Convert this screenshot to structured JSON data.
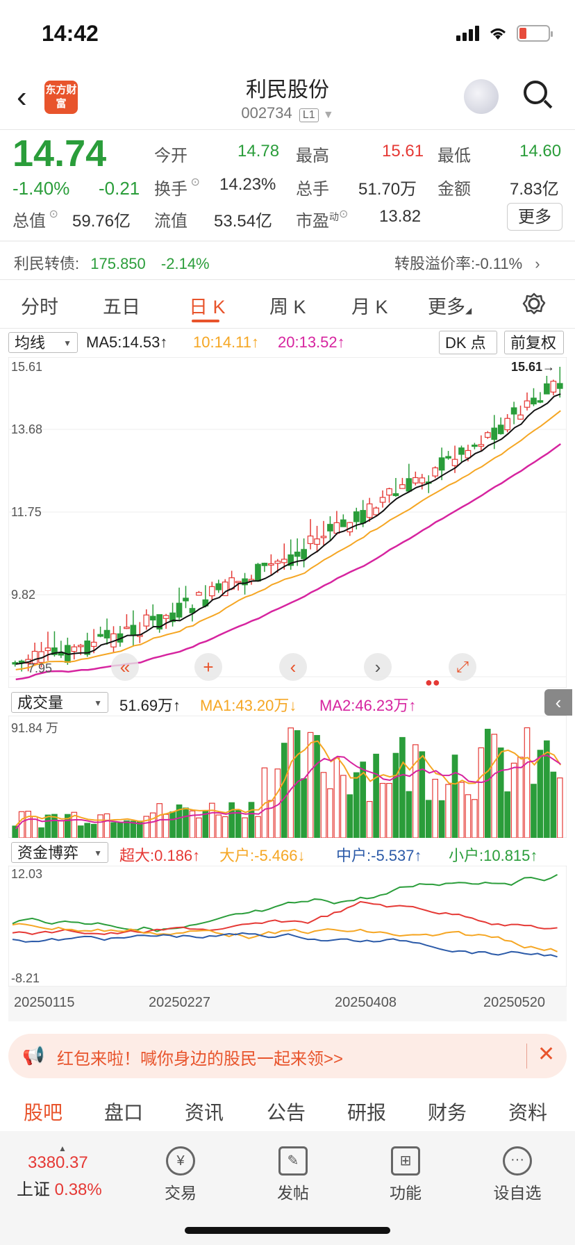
{
  "status": {
    "time": "14:42"
  },
  "header": {
    "name": "利民股份",
    "code": "002734",
    "level": "L1",
    "logo_text": "东方财富"
  },
  "quote": {
    "price": "14.74",
    "pct": "-1.40%",
    "chg": "-0.21",
    "open_label": "今开",
    "open": "14.78",
    "high_label": "最高",
    "high": "15.61",
    "low_label": "最低",
    "low": "14.60",
    "turnover_label": "换手",
    "turnover": "14.23%",
    "volume_label": "总手",
    "volume": "51.70万",
    "amount_label": "金额",
    "amount": "7.83亿",
    "mktcap_label": "总值",
    "mktcap": "59.76亿",
    "float_label": "流值",
    "float": "53.54亿",
    "pe_label": "市盈",
    "pe_sup": "动",
    "pe": "13.82",
    "more": "更多"
  },
  "bond": {
    "name": "利民转债:",
    "price": "175.850",
    "pct": "-2.14%",
    "premium": "转股溢价率:-0.11%"
  },
  "tabs": [
    "分时",
    "五日",
    "日 K",
    "周 K",
    "月 K",
    "更多"
  ],
  "kline": {
    "ma_select": "均线",
    "ma5": "MA5:14.53↑",
    "ma10": "10:14.11↑",
    "ma20": "20:13.52↑",
    "dk": "DK 点",
    "adjust": "前复权",
    "y_labels": [
      "15.61",
      "13.68",
      "11.75",
      "9.82",
      "7.95"
    ],
    "high_marker": "15.61→"
  },
  "volume": {
    "select": "成交量",
    "val": "51.69万↑",
    "ma1": "MA1:43.20万↓",
    "ma2": "MA2:46.23万↑",
    "max": "91.84 万"
  },
  "funds": {
    "select": "资金博弈",
    "super": "超大:0.186↑",
    "big": "大户:-5.466↓",
    "mid": "中户:-5.537↑",
    "small": "小户:10.815↑",
    "max": "12.03",
    "min": "-8.21"
  },
  "x_dates": [
    "20250115",
    "20250227",
    "20250408",
    "20250520"
  ],
  "banner": {
    "text": "红包来啦！喊你身边的股民一起来领>>"
  },
  "bottom_tabs": [
    "股吧",
    "盘口",
    "资讯",
    "公告",
    "研报",
    "财务",
    "资料"
  ],
  "footer": {
    "index_value": "3380.37",
    "index_name": "上证",
    "index_pct": "0.38%",
    "items": [
      "交易",
      "发帖",
      "功能",
      "设自选"
    ]
  },
  "colors": {
    "up": "#e53935",
    "down": "#2a9d3a",
    "accent": "#e8542c",
    "ma5": "#111111",
    "ma10": "#f5a623",
    "ma20": "#d6249f",
    "mid": "#2b5aa8"
  }
}
